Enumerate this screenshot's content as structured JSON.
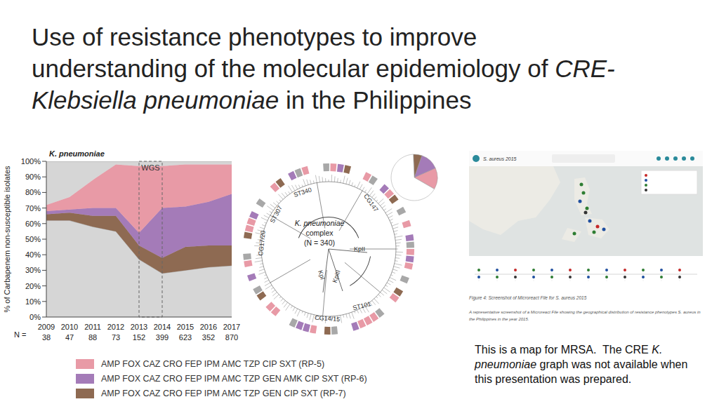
{
  "title_lines": [
    [
      {
        "text": "Use of resistance phenotypes to improve"
      }
    ],
    [
      {
        "text": "understanding of the molecular epidemiology of "
      },
      {
        "text": "CRE-",
        "italic": true
      }
    ],
    [
      {
        "text": "Klebsiella pneumoniae",
        "italic": true
      },
      {
        "text": " in the Philippines"
      }
    ]
  ],
  "chart_data": [
    {
      "type": "area",
      "title": "K. pneumoniae",
      "y_label": "% of Carbapenem non-susceptible isolates",
      "stacked": true,
      "x": [
        2009,
        2010,
        2011,
        2012,
        2013,
        2014,
        2015,
        2016,
        2017
      ],
      "xlim": [
        2009,
        2017
      ],
      "xticks": [
        2009,
        2010,
        2011,
        2012,
        2013,
        2014,
        2015,
        2016,
        2017
      ],
      "ylim": [
        0,
        100
      ],
      "yticks": [
        {
          "value": 0,
          "label": "0%"
        },
        {
          "value": 10,
          "label": "10%"
        },
        {
          "value": 20,
          "label": "20%"
        },
        {
          "value": 30,
          "label": "30%"
        },
        {
          "value": 40,
          "label": "40%"
        },
        {
          "value": 50,
          "label": "50%"
        },
        {
          "value": 60,
          "label": "60%"
        },
        {
          "value": 70,
          "label": "70%"
        },
        {
          "value": 80,
          "label": "80%"
        },
        {
          "value": 90,
          "label": "90%"
        },
        {
          "value": 100,
          "label": "100%"
        }
      ],
      "n_label": "N =",
      "n_values": [
        38,
        47,
        88,
        73,
        152,
        399,
        623,
        352,
        870
      ],
      "annotations": [
        {
          "text": "WGS",
          "x_from": 2013,
          "x_to": 2014
        }
      ],
      "series": [
        {
          "color": "#d6d6d6",
          "values": [
            28,
            23,
            12,
            2,
            3,
            3,
            2,
            2,
            2
          ]
        },
        {
          "name": "AMP FOX CAZ CRO FEP IPM AMC TZP CIP SXT (RP-5)",
          "color": "#e89aa6",
          "values": [
            4,
            8,
            18,
            28,
            43,
            27,
            27,
            24,
            19
          ]
        },
        {
          "name": "AMP FOX CAZ CRO FEP IPM AMC TZP GEN AMK CIP SXT (RP-6)",
          "color": "#a47bb8",
          "values": [
            2,
            2,
            5,
            5,
            8,
            32,
            26,
            28,
            33
          ]
        },
        {
          "name": "AMP FOX CAZ CRO FEP IPM AMC TZP GEN CIP SXT (RP-7)",
          "color": "#8e6a52",
          "values": [
            4,
            5,
            7,
            10,
            9,
            10,
            15,
            14,
            13
          ]
        },
        {
          "color": "#d6d6d6",
          "values": [
            62,
            62,
            58,
            55,
            37,
            28,
            30,
            32,
            33
          ]
        }
      ]
    },
    {
      "type": "pie",
      "values": [
        15,
        13,
        6,
        66
      ],
      "colors": [
        "#e89aa6",
        "#a47bb8",
        "#8e6a52",
        "#ffffff"
      ]
    }
  ],
  "tree": {
    "center_lines": [
      {
        "text": "K. pneumoniae",
        "italic": true
      },
      {
        "text": "complex"
      },
      {
        "text": "(N = 340)"
      }
    ],
    "labels": [
      "ST340",
      "CG147",
      "ST307",
      "CG17/20",
      "KpII",
      "KpIII",
      "KpI",
      "ST101",
      "CG14/15"
    ]
  },
  "map_screenshot": {
    "header": "S. aureus 2015",
    "caption_title": "Figure 4: Screenshot of Microreact File for S. aureus 2015",
    "caption_text": "A representative screenshot of a Microreact File showing the geographical distribution of resistance phenotypes S. aureus in the Philippines in the year 2015."
  },
  "note": [
    {
      "text": "This is a map for MRSA.  The CRE "
    },
    {
      "text": "K. pneumoniae",
      "italic": true
    },
    {
      "text": " graph was not available when this presentation was prepared."
    }
  ]
}
